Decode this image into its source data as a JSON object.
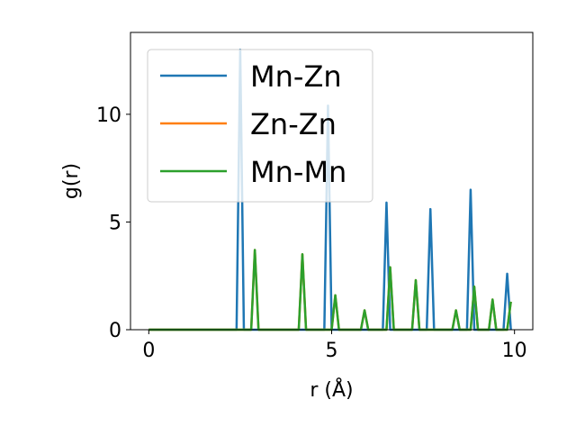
{
  "chart_data": {
    "type": "line",
    "title": "",
    "xlabel": "r (Å)",
    "ylabel": "g(r)",
    "xlim": [
      -0.5,
      10.5
    ],
    "ylim": [
      0,
      13.8
    ],
    "xticks": [
      0,
      5,
      10
    ],
    "xtick_labels": [
      "0",
      "5",
      "10"
    ],
    "yticks": [
      0,
      5,
      10
    ],
    "ytick_labels": [
      "0",
      "5",
      "10"
    ],
    "grid": false,
    "legend_position": "top-left",
    "series": [
      {
        "name": "Mn-Zn",
        "color": "#1f77b4",
        "x": [
          0,
          2.4,
          2.5,
          2.6,
          4.8,
          4.9,
          5.0,
          6.4,
          6.5,
          6.6,
          7.6,
          7.7,
          7.8,
          8.7,
          8.8,
          8.9,
          9.7,
          9.8,
          9.9
        ],
        "y": [
          0,
          0,
          13.0,
          0,
          0,
          10.4,
          0,
          0,
          5.9,
          0,
          0,
          5.6,
          0,
          0,
          6.5,
          0,
          0,
          2.6,
          0
        ]
      },
      {
        "name": "Zn-Zn",
        "color": "#ff7f0e",
        "x": [
          0,
          2.8,
          2.9,
          3.0,
          4.1,
          4.2,
          4.3,
          5.0,
          5.1,
          5.2,
          5.8,
          5.9,
          6.0,
          6.5,
          6.6,
          6.7,
          7.2,
          7.3,
          7.4,
          8.3,
          8.4,
          8.5,
          8.8,
          8.9,
          9.0,
          9.3,
          9.4,
          9.5,
          9.8,
          9.9
        ],
        "y": [
          0,
          0,
          3.7,
          0,
          0,
          3.5,
          0,
          0,
          1.6,
          0,
          0,
          0.9,
          0,
          0,
          2.9,
          0,
          0,
          2.3,
          0,
          0,
          0.9,
          0,
          0,
          2.0,
          0,
          0,
          1.4,
          0,
          0,
          1.3
        ]
      },
      {
        "name": "Mn-Mn",
        "color": "#2ca02c",
        "x": [
          0,
          2.8,
          2.9,
          3.0,
          4.1,
          4.2,
          4.3,
          5.0,
          5.1,
          5.2,
          5.8,
          5.9,
          6.0,
          6.5,
          6.6,
          6.7,
          7.2,
          7.3,
          7.4,
          8.3,
          8.4,
          8.5,
          8.8,
          8.9,
          9.0,
          9.3,
          9.4,
          9.5,
          9.8,
          9.9
        ],
        "y": [
          0,
          0,
          3.7,
          0,
          0,
          3.5,
          0,
          0,
          1.6,
          0,
          0,
          0.9,
          0,
          0,
          2.9,
          0,
          0,
          2.3,
          0,
          0,
          0.9,
          0,
          0,
          2.0,
          0,
          0,
          1.4,
          0,
          0,
          1.3
        ]
      }
    ]
  }
}
